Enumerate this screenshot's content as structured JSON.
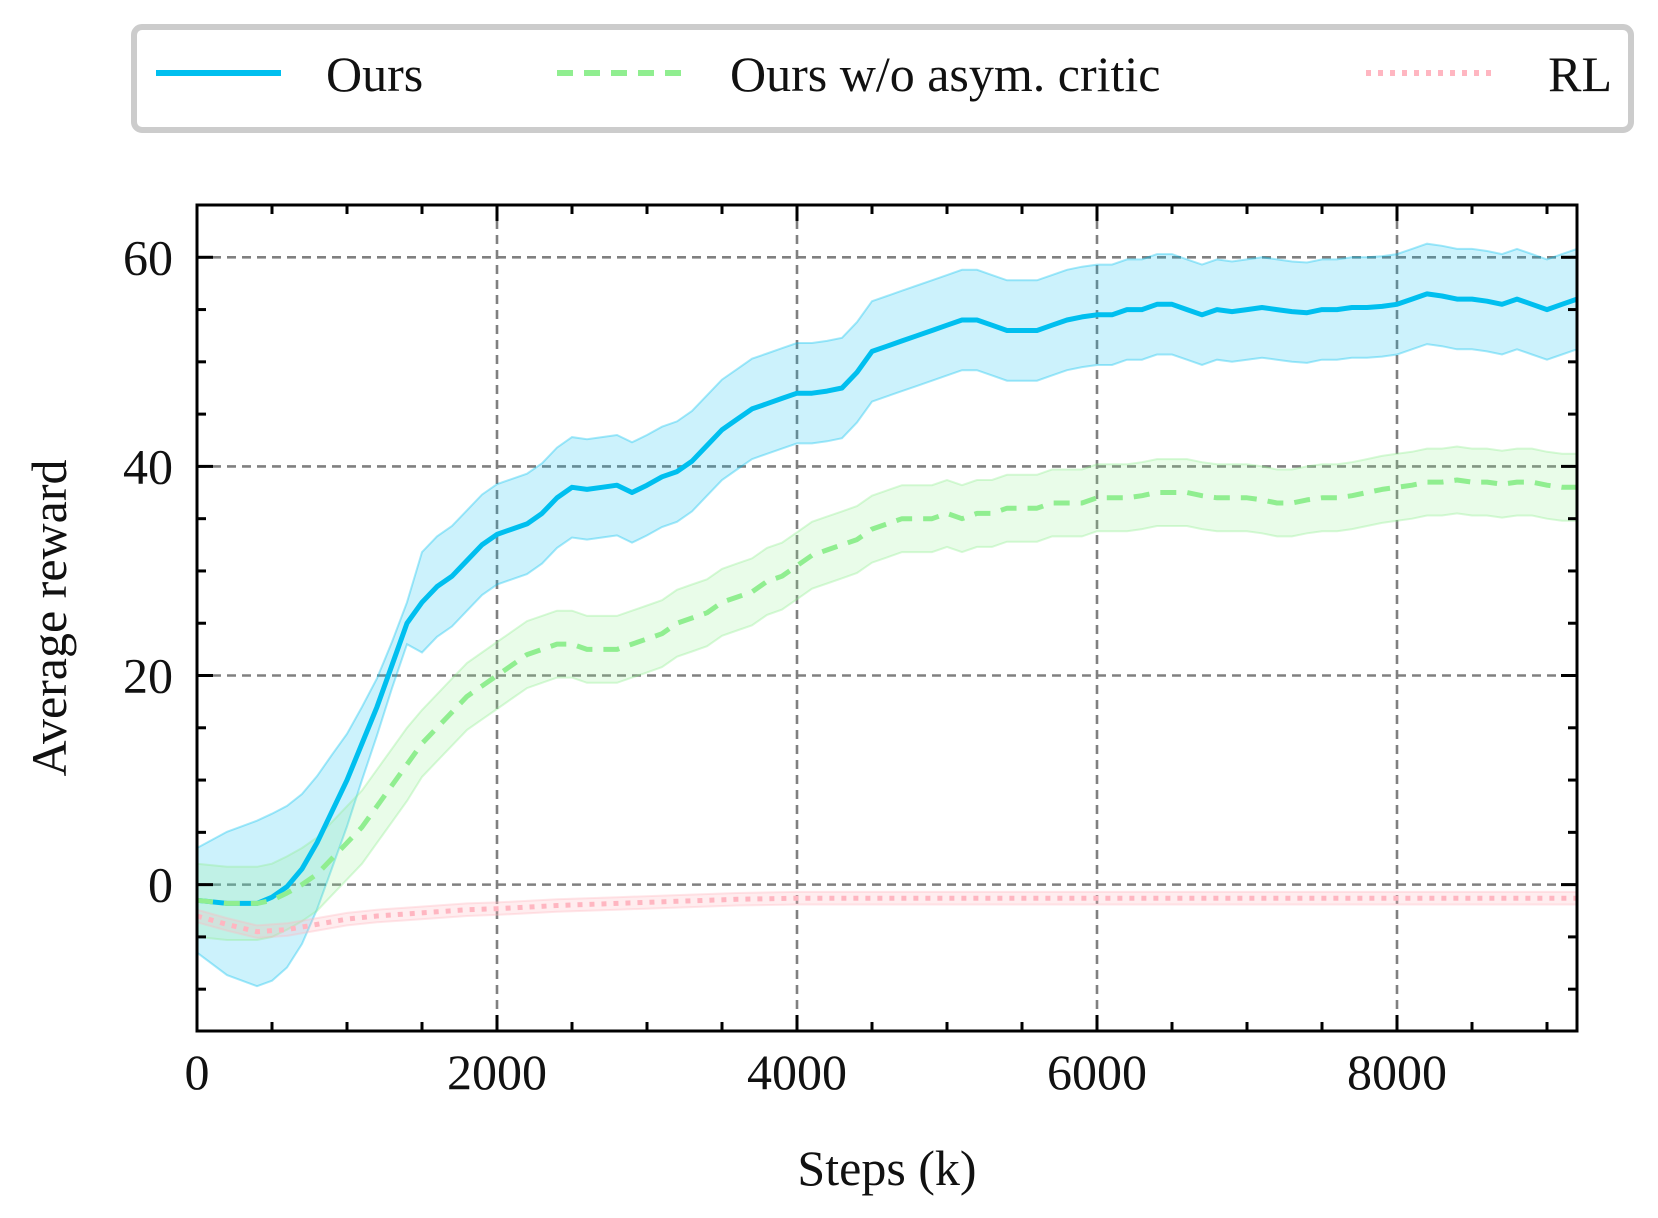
{
  "chart_data": {
    "type": "line",
    "title": "",
    "xlabel": "Steps (k)",
    "ylabel": "Average reward",
    "xlim": [
      0,
      9200
    ],
    "ylim": [
      -14,
      65
    ],
    "xticks": [
      0,
      2000,
      4000,
      6000,
      8000
    ],
    "xtick_labels": [
      "0",
      "2000",
      "4000",
      "6000",
      "8000"
    ],
    "yticks": [
      0,
      20,
      40,
      60
    ],
    "ytick_labels": [
      "0",
      "20",
      "40",
      "60"
    ],
    "grid": true,
    "legend_position": "top (above plot)",
    "series": [
      {
        "name": "Ours",
        "style": "solid",
        "color": "#00bfef",
        "x": [
          0,
          200,
          400,
          500,
          600,
          700,
          800,
          900,
          1000,
          1100,
          1200,
          1300,
          1400,
          1500,
          1600,
          1700,
          1800,
          1900,
          2000,
          2100,
          2200,
          2300,
          2400,
          2500,
          2600,
          2700,
          2800,
          2900,
          3000,
          3100,
          3200,
          3300,
          3400,
          3500,
          3600,
          3700,
          3800,
          3900,
          4000,
          4100,
          4200,
          4300,
          4400,
          4500,
          4600,
          4700,
          4800,
          4900,
          5000,
          5100,
          5200,
          5300,
          5400,
          5500,
          5600,
          5700,
          5800,
          5900,
          6000,
          6100,
          6200,
          6300,
          6400,
          6500,
          6600,
          6700,
          6800,
          6900,
          7000,
          7100,
          7200,
          7300,
          7400,
          7500,
          7600,
          7700,
          7800,
          7900,
          8000,
          8100,
          8200,
          8300,
          8400,
          8500,
          8600,
          8700,
          8800,
          8900,
          9000,
          9100,
          9200
        ],
        "values": [
          -1.5,
          -1.8,
          -1.8,
          -1.2,
          -0.2,
          1.5,
          4,
          7,
          10,
          13.5,
          17,
          21,
          25,
          27,
          28.5,
          29.5,
          31,
          32.5,
          33.5,
          34,
          34.5,
          35.5,
          37,
          38,
          37.8,
          38,
          38.2,
          37.5,
          38.2,
          39,
          39.5,
          40.5,
          42,
          43.5,
          44.5,
          45.5,
          46,
          46.5,
          47,
          47,
          47.2,
          47.5,
          49,
          51,
          51.5,
          52,
          52.5,
          53,
          53.5,
          54,
          54,
          53.5,
          53,
          53,
          53,
          53.5,
          54,
          54.3,
          54.5,
          54.5,
          55,
          55,
          55.5,
          55.5,
          55,
          54.5,
          55,
          54.8,
          55,
          55.2,
          55,
          54.8,
          54.7,
          55,
          55,
          55.2,
          55.2,
          55.3,
          55.5,
          56,
          56.5,
          56.3,
          56,
          56,
          55.8,
          55.5,
          56,
          55.5,
          55,
          55.5,
          56
        ]
      },
      {
        "name": "Ours w/o asym. critic",
        "style": "dashed",
        "color": "#90ee90",
        "x": [
          0,
          200,
          400,
          500,
          600,
          700,
          800,
          900,
          1000,
          1100,
          1200,
          1300,
          1400,
          1500,
          1600,
          1700,
          1800,
          1900,
          2000,
          2100,
          2200,
          2300,
          2400,
          2500,
          2600,
          2700,
          2800,
          2900,
          3000,
          3100,
          3200,
          3300,
          3400,
          3500,
          3600,
          3700,
          3800,
          3900,
          4000,
          4100,
          4200,
          4300,
          4400,
          4500,
          4600,
          4700,
          4800,
          4900,
          5000,
          5100,
          5200,
          5300,
          5400,
          5500,
          5600,
          5700,
          5800,
          5900,
          6000,
          6100,
          6200,
          6300,
          6400,
          6500,
          6600,
          6700,
          6800,
          6900,
          7000,
          7100,
          7200,
          7300,
          7400,
          7500,
          7600,
          7700,
          7800,
          7900,
          8000,
          8100,
          8200,
          8300,
          8400,
          8500,
          8600,
          8700,
          8800,
          8900,
          9000,
          9100,
          9200
        ],
        "values": [
          -1.5,
          -1.8,
          -1.8,
          -1.5,
          -0.8,
          0,
          1,
          2.5,
          4,
          5.5,
          7.5,
          9.5,
          11.5,
          13.5,
          15,
          16.5,
          18,
          19,
          20,
          21,
          22,
          22.5,
          23,
          23,
          22.5,
          22.5,
          22.5,
          23,
          23.5,
          24,
          25,
          25.5,
          26,
          27,
          27.5,
          28,
          29,
          29.5,
          30.5,
          31.5,
          32,
          32.5,
          33,
          34,
          34.5,
          35,
          35,
          35,
          35.5,
          35,
          35.5,
          35.5,
          36,
          36,
          36,
          36.5,
          36.5,
          36.5,
          37,
          37,
          37,
          37.2,
          37.5,
          37.5,
          37.5,
          37.2,
          37,
          37,
          37,
          36.8,
          36.5,
          36.5,
          36.8,
          37,
          37,
          37.2,
          37.5,
          37.8,
          38,
          38.2,
          38.5,
          38.5,
          38.7,
          38.5,
          38.5,
          38.3,
          38.5,
          38.5,
          38.2,
          38,
          38
        ]
      },
      {
        "name": "RL",
        "style": "dotted",
        "color": "#ffb6c1",
        "x": [
          0,
          200,
          400,
          600,
          800,
          1000,
          1200,
          1400,
          1600,
          1800,
          2000,
          2400,
          2800,
          3200,
          3600,
          4000,
          4400,
          4800,
          5200,
          6000,
          7000,
          8000,
          9200
        ],
        "values": [
          -3,
          -3.8,
          -4.5,
          -4.3,
          -3.8,
          -3.3,
          -3,
          -2.8,
          -2.6,
          -2.4,
          -2.3,
          -2,
          -1.8,
          -1.6,
          -1.4,
          -1.3,
          -1.3,
          -1.3,
          -1.3,
          -1.3,
          -1.3,
          -1.3,
          -1.3
        ]
      }
    ]
  }
}
